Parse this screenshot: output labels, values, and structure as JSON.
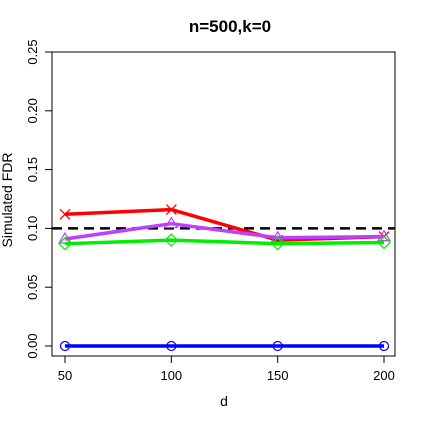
{
  "chart_data": {
    "type": "line",
    "title": "n=500,k=0",
    "xlabel": "d",
    "ylabel": "Simulated FDR",
    "x": [
      50,
      100,
      150,
      200
    ],
    "xlim": [
      50,
      200
    ],
    "ylim": [
      0,
      0.25
    ],
    "xticks": [
      "50",
      "100",
      "150",
      "200"
    ],
    "yticks": [
      "0.00",
      "0.05",
      "0.10",
      "0.15",
      "0.20",
      "0.25"
    ],
    "reference_line": {
      "y": 0.1,
      "style": "dashed",
      "color": "#000000"
    },
    "grid": false,
    "series": [
      {
        "color": "#ff0000",
        "marker": "x",
        "values": [
          0.112,
          0.116,
          0.09,
          0.093
        ]
      },
      {
        "color": "#bf3fff",
        "marker": "triangle",
        "values": [
          0.091,
          0.104,
          0.092,
          0.093
        ]
      },
      {
        "color": "#00ee00",
        "marker": "diamond",
        "values": [
          0.087,
          0.09,
          0.087,
          0.088
        ]
      },
      {
        "color": "#0000ff",
        "marker": "circle",
        "values": [
          0.0,
          0.0,
          0.0,
          0.0
        ]
      }
    ]
  }
}
